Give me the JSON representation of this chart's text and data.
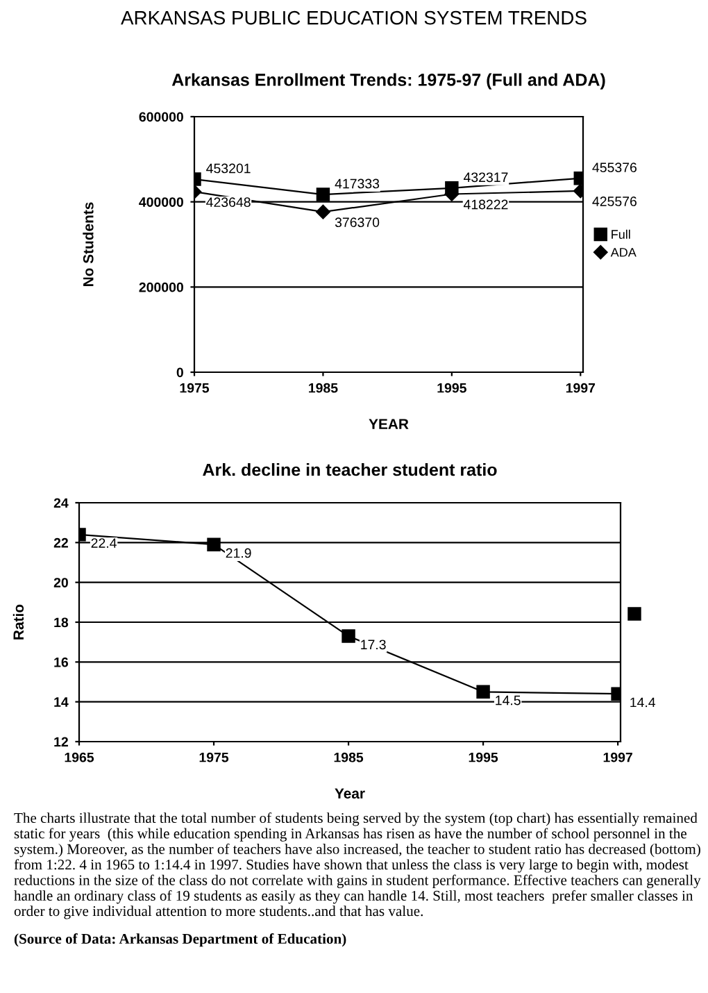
{
  "chart_data": [
    {
      "type": "line",
      "title": "ARKANSAS PUBLIC EDUCATION SYSTEM TRENDS",
      "subtitle": "Arkansas Enrollment Trends: 1975-97 (Full and ADA)",
      "xlabel": "YEAR",
      "ylabel": "No Students",
      "categories": [
        "1975",
        "1985",
        "1995",
        "1997"
      ],
      "series": [
        {
          "name": "Full",
          "color": "#000000",
          "marker": "square",
          "values": [
            453201,
            417333,
            432317,
            455376
          ]
        },
        {
          "name": "ADA",
          "color": "#000000",
          "marker": "diamond",
          "values": [
            423648,
            376370,
            418222,
            425576
          ]
        }
      ],
      "ylim": [
        0,
        600000
      ],
      "yticks": [
        0,
        200000,
        400000,
        600000
      ],
      "grid": "y",
      "legend": "right",
      "data_labels": true,
      "line_style": "solid"
    },
    {
      "type": "line",
      "title": "Ark. decline in teacher student ratio",
      "xlabel": "Year",
      "ylabel": "Ratio",
      "categories": [
        "1965",
        "1975",
        "1985",
        "1995",
        "1997"
      ],
      "series": [
        {
          "color": "#000000",
          "marker": "square",
          "values": [
            22.4,
            21.9,
            17.3,
            14.5,
            14.4
          ]
        }
      ],
      "ylim": [
        12,
        24
      ],
      "yticks": [
        12,
        14,
        16,
        18,
        20,
        22,
        24
      ],
      "grid": "y",
      "data_labels": true,
      "line_style": "solid",
      "annotations": [
        "The charts illustrate that the total number of students being served by the system (top chart) has essentially remained static for years  (this while education spending in Arkansas has risen as have the number of school personnel in the system.) Moreover, as the number of teachers have also increased, the teacher to student ratio has decreased (bottom) from 1:22. 4 in 1965 to 1:14.4 in 1997. Studies have shown that unless the class is very large to begin with, modest reductions in the size of the class do not correlate with gains in student performance. Effective teachers can generally handle an ordinary class of 19 students as easily as they can handle 14. Still, most teachers  prefer smaller classes in order to give individual attention to more students..and that has value.",
        "(Source of Data: Arkansas Department of Education)"
      ]
    }
  ]
}
